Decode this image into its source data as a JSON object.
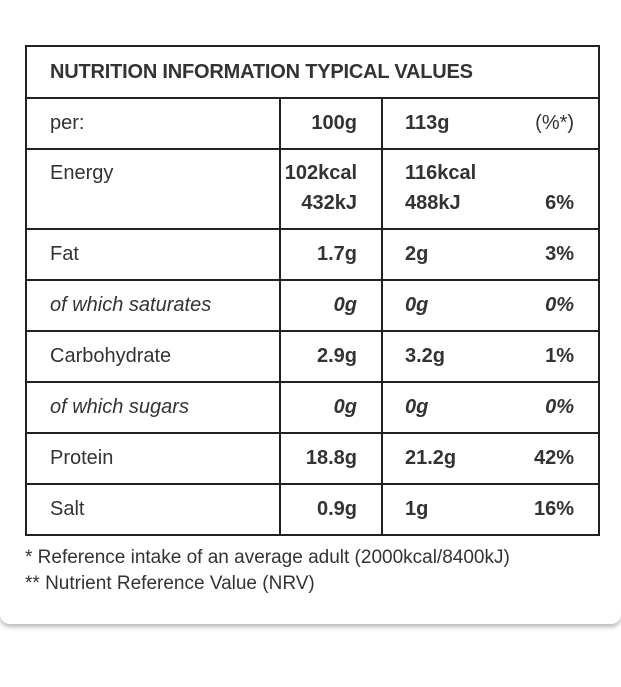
{
  "table": {
    "title": "NUTRITION INFORMATION TYPICAL VALUES",
    "header": {
      "label": "per:",
      "col_100": "100g",
      "col_113": "113g",
      "col_ri": "(%*)"
    },
    "energy": {
      "label": "Energy",
      "kcal_100": "102kcal",
      "kj_100": "432kJ",
      "kcal_113": "116kcal",
      "kj_113": "488kJ",
      "ri": "6%"
    },
    "rows": [
      {
        "label": "Fat",
        "v100": "1.7g",
        "v113": "2g",
        "ri": "3%"
      },
      {
        "label": "of which saturates",
        "v100": "0g",
        "v113": "0g",
        "ri": "0%"
      },
      {
        "label": "Carbohydrate",
        "v100": "2.9g",
        "v113": "3.2g",
        "ri": "1%"
      },
      {
        "label": "of which sugars",
        "v100": "0g",
        "v113": "0g",
        "ri": "0%"
      },
      {
        "label": "Protein",
        "v100": "18.8g",
        "v113": "21.2g",
        "ri": "42%"
      },
      {
        "label": "Salt",
        "v100": "0.9g",
        "v113": "1g",
        "ri": "16%"
      }
    ]
  },
  "footnotes": {
    "ref_intake": "* Reference intake of an average adult (2000kcal/8400kJ)",
    "nrv": "** Nutrient Reference Value (NRV)"
  }
}
